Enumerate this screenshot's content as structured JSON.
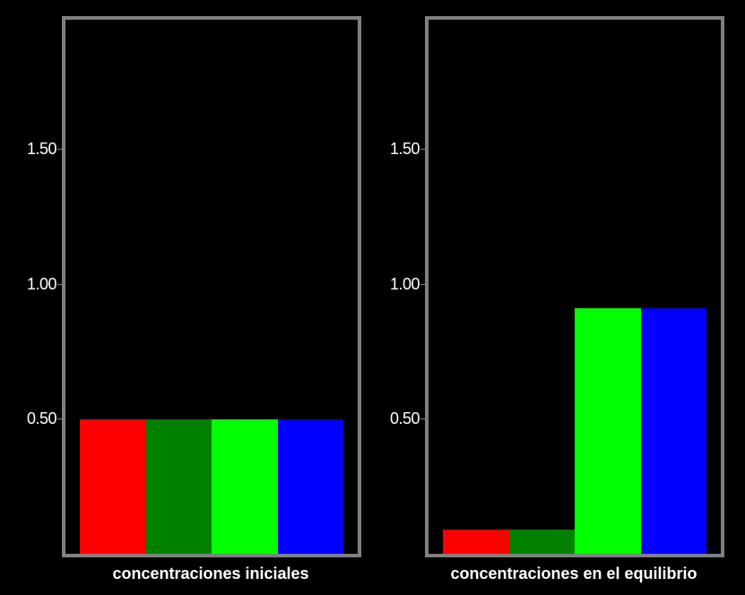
{
  "chart_data": [
    {
      "type": "bar",
      "categories": [
        "",
        "",
        "",
        ""
      ],
      "values": [
        0.5,
        0.5,
        0.5,
        0.5
      ],
      "colors": [
        "#ff0000",
        "#008000",
        "#00ff00",
        "#0000ff"
      ],
      "title": "",
      "xlabel": "concentraciones iniciales",
      "ylabel": "",
      "ylim": [
        0,
        1.98
      ],
      "yticks": [
        {
          "value": 0.5,
          "label": "0.50"
        },
        {
          "value": 1.0,
          "label": "1.00"
        },
        {
          "value": 1.5,
          "label": "1.50"
        }
      ],
      "grid": false
    },
    {
      "type": "bar",
      "categories": [
        "",
        "",
        "",
        ""
      ],
      "values": [
        0.09,
        0.09,
        0.91,
        0.91
      ],
      "colors": [
        "#ff0000",
        "#008000",
        "#00ff00",
        "#0000ff"
      ],
      "title": "",
      "xlabel": "concentraciones en el equilibrio",
      "ylabel": "",
      "ylim": [
        0,
        1.98
      ],
      "yticks": [
        {
          "value": 0.5,
          "label": "0.50"
        },
        {
          "value": 1.0,
          "label": "1.00"
        },
        {
          "value": 1.5,
          "label": "1.50"
        }
      ],
      "grid": false
    }
  ]
}
